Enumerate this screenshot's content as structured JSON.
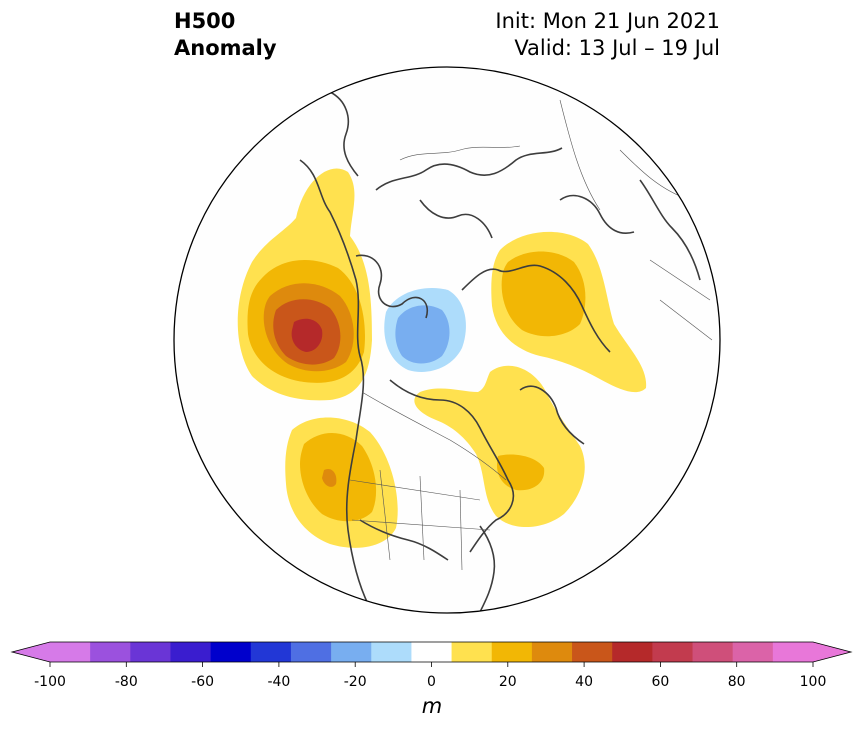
{
  "header": {
    "title_line1": "H500",
    "title_line2": "Anomaly",
    "init": "Init: Mon 21 Jun 2021",
    "valid": "Valid: 13 Jul – 19 Jul"
  },
  "colorbar": {
    "unit": "m",
    "ticks": [
      "-100",
      "-80",
      "-60",
      "-40",
      "-20",
      "0",
      "20",
      "40",
      "60",
      "80",
      "100"
    ],
    "levels": [
      -100,
      -90,
      -80,
      -70,
      -60,
      -50,
      -40,
      -30,
      -20,
      -10,
      10,
      20,
      30,
      40,
      50,
      60,
      70,
      80,
      90,
      100
    ],
    "colors": [
      "#d67ae8",
      "#9b51de",
      "#6a35d6",
      "#3a1dcf",
      "#0000cc",
      "#2237d6",
      "#4f6fe3",
      "#78aef0",
      "#addcfb",
      "#ffffff",
      "#ffe14f",
      "#f2b705",
      "#de8a0d",
      "#c9561a",
      "#b5292a",
      "#c23b4e",
      "#cf4f7a",
      "#db63a8",
      "#e877d9"
    ],
    "under_color": "#d67ae8",
    "over_color": "#e877d9"
  },
  "map": {
    "projection": "north-polar-stereographic",
    "anomalies": [
      {
        "region": "Gulf of Alaska / NE Pacific",
        "sign": "positive",
        "max_m": 60
      },
      {
        "region": "Western US / Pacific Northwest",
        "sign": "positive",
        "max_m": 40
      },
      {
        "region": "Scandinavia / NW Russia",
        "sign": "positive",
        "max_m": 30
      },
      {
        "region": "Eastern Canada / Labrador",
        "sign": "positive",
        "max_m": 40
      },
      {
        "region": "Arctic Ocean / Beaufort",
        "sign": "negative",
        "min_m": -30
      }
    ]
  }
}
